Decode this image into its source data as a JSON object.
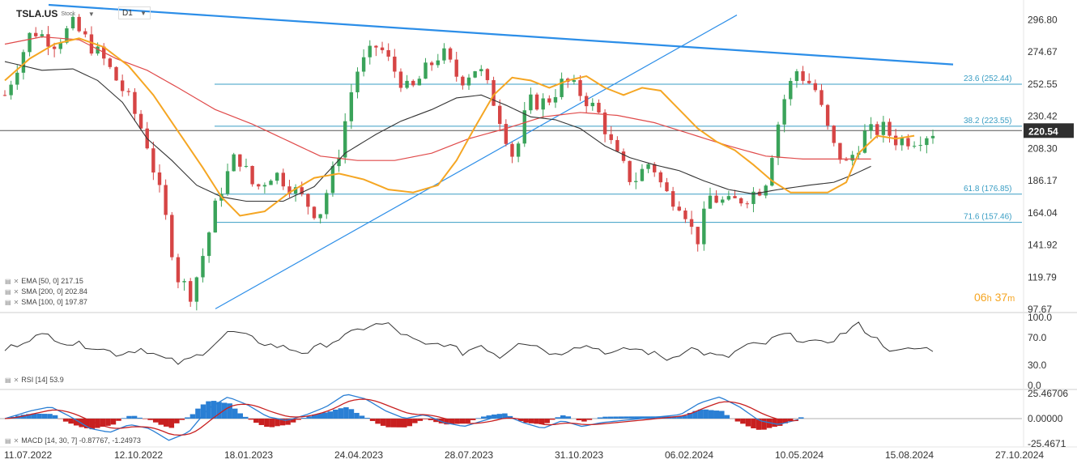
{
  "header": {
    "symbol": "TSLA.US",
    "asset_type": "Stock",
    "timeframe": "D1"
  },
  "indicators": {
    "ema": {
      "label": "EMA [50, 0] 217.15",
      "value": 217.15,
      "color": "#f5a623"
    },
    "sma200": {
      "label": "SMA [200, 0] 202.84",
      "value": 202.84,
      "color": "#e04a4a"
    },
    "sma100": {
      "label": "SMA [100, 0] 197.87",
      "value": 197.87,
      "color": "#333333"
    },
    "rsi": {
      "label": "RSI [14] 53.9",
      "value": 53.9
    },
    "macd": {
      "label": "MACD [14, 30, 7] -0.87767, -1.24973",
      "value": -0.87767,
      "signal": -1.24973
    }
  },
  "countdown": {
    "hours": "06",
    "h_unit": "h",
    "minutes": "37",
    "m_unit": "m"
  },
  "colors": {
    "up": "#3aa35a",
    "down": "#d64545",
    "trend": "#2c8ee8",
    "fib": "#3a9ec4",
    "price_tag": "#2f2f2f"
  },
  "chart_data": {
    "type": "candlestick",
    "title": "TSLA.US Stock D1",
    "x_dates": [
      "11.07.2022",
      "12.10.2022",
      "18.01.2023",
      "24.04.2023",
      "28.07.2023",
      "31.10.2023",
      "06.02.2024",
      "10.05.2024",
      "15.08.2024",
      "27.10.2024"
    ],
    "price_ticks": [
      97.67,
      119.79,
      141.92,
      164.04,
      186.17,
      208.3,
      230.42,
      252.55,
      274.67,
      296.8
    ],
    "ylim": [
      97.67,
      307
    ],
    "last_price": 220.54,
    "fib_levels": [
      {
        "label": "23.6 (252.44)",
        "value": 252.44
      },
      {
        "label": "38.2 (223.55)",
        "value": 223.55
      },
      {
        "label": "61.8 (176.85)",
        "value": 176.85
      },
      {
        "label": "71.6 (157.46)",
        "value": 157.46
      }
    ],
    "price_path": [
      [
        0,
        245
      ],
      [
        6,
        290
      ],
      [
        11,
        281
      ],
      [
        15,
        293
      ],
      [
        22,
        268
      ],
      [
        27,
        243
      ],
      [
        31,
        215
      ],
      [
        35,
        165
      ],
      [
        38,
        120
      ],
      [
        41,
        108
      ],
      [
        44,
        140
      ],
      [
        47,
        177
      ],
      [
        51,
        205
      ],
      [
        55,
        180
      ],
      [
        59,
        192
      ],
      [
        62,
        185
      ],
      [
        66,
        172
      ],
      [
        69,
        162
      ],
      [
        73,
        200
      ],
      [
        77,
        260
      ],
      [
        82,
        280
      ],
      [
        85,
        265
      ],
      [
        89,
        246
      ],
      [
        92,
        260
      ],
      [
        96,
        275
      ],
      [
        100,
        255
      ],
      [
        104,
        265
      ],
      [
        108,
        237
      ],
      [
        112,
        200
      ],
      [
        115,
        240
      ],
      [
        119,
        240
      ],
      [
        123,
        255
      ],
      [
        127,
        245
      ],
      [
        131,
        230
      ],
      [
        134,
        205
      ],
      [
        138,
        185
      ],
      [
        142,
        200
      ],
      [
        145,
        178
      ],
      [
        149,
        170
      ],
      [
        152,
        143
      ],
      [
        155,
        175
      ],
      [
        159,
        170
      ],
      [
        163,
        175
      ],
      [
        167,
        183
      ],
      [
        171,
        240
      ],
      [
        174,
        262
      ],
      [
        178,
        250
      ],
      [
        182,
        210
      ],
      [
        185,
        197
      ],
      [
        189,
        218
      ],
      [
        193,
        222
      ],
      [
        196,
        214
      ],
      [
        200,
        215
      ],
      [
        204,
        220
      ]
    ],
    "sma100_path": [
      [
        0,
        268
      ],
      [
        6,
        262
      ],
      [
        11,
        263
      ],
      [
        15,
        255
      ],
      [
        19,
        240
      ],
      [
        23,
        215
      ],
      [
        27,
        200
      ],
      [
        31,
        183
      ],
      [
        35,
        175
      ],
      [
        39,
        172
      ],
      [
        45,
        172
      ],
      [
        50,
        182
      ],
      [
        55,
        205
      ],
      [
        60,
        218
      ],
      [
        64,
        227
      ],
      [
        69,
        235
      ],
      [
        73,
        243
      ],
      [
        77,
        245
      ],
      [
        81,
        238
      ],
      [
        85,
        230
      ],
      [
        89,
        228
      ],
      [
        93,
        222
      ],
      [
        97,
        210
      ],
      [
        101,
        202
      ],
      [
        105,
        197
      ],
      [
        109,
        193
      ],
      [
        113,
        186
      ],
      [
        117,
        180
      ],
      [
        121,
        177
      ],
      [
        125,
        180
      ],
      [
        130,
        183
      ],
      [
        134,
        185
      ],
      [
        137,
        190
      ],
      [
        140,
        196
      ]
    ],
    "sma200_path": [
      [
        0,
        280
      ],
      [
        6,
        285
      ],
      [
        12,
        283
      ],
      [
        18,
        270
      ],
      [
        23,
        262
      ],
      [
        28,
        250
      ],
      [
        34,
        235
      ],
      [
        40,
        225
      ],
      [
        45,
        215
      ],
      [
        51,
        203
      ],
      [
        57,
        200
      ],
      [
        63,
        200
      ],
      [
        69,
        205
      ],
      [
        75,
        215
      ],
      [
        81,
        222
      ],
      [
        87,
        230
      ],
      [
        93,
        233
      ],
      [
        99,
        231
      ],
      [
        105,
        226
      ],
      [
        111,
        218
      ],
      [
        117,
        210
      ],
      [
        123,
        203
      ],
      [
        129,
        201
      ],
      [
        135,
        201
      ],
      [
        140,
        201
      ]
    ],
    "ema50_path": [
      [
        0,
        255
      ],
      [
        4,
        270
      ],
      [
        8,
        280
      ],
      [
        12,
        284
      ],
      [
        16,
        278
      ],
      [
        20,
        265
      ],
      [
        24,
        245
      ],
      [
        28,
        220
      ],
      [
        32,
        195
      ],
      [
        35,
        175
      ],
      [
        38,
        162
      ],
      [
        42,
        165
      ],
      [
        46,
        178
      ],
      [
        50,
        188
      ],
      [
        54,
        191
      ],
      [
        58,
        187
      ],
      [
        62,
        180
      ],
      [
        66,
        178
      ],
      [
        70,
        183
      ],
      [
        73,
        200
      ],
      [
        76,
        223
      ],
      [
        79,
        245
      ],
      [
        82,
        257
      ],
      [
        85,
        255
      ],
      [
        88,
        250
      ],
      [
        91,
        255
      ],
      [
        94,
        258
      ],
      [
        97,
        250
      ],
      [
        100,
        245
      ],
      [
        103,
        250
      ],
      [
        106,
        248
      ],
      [
        109,
        235
      ],
      [
        112,
        222
      ],
      [
        115,
        213
      ],
      [
        118,
        207
      ],
      [
        121,
        197
      ],
      [
        124,
        186
      ],
      [
        127,
        178
      ],
      [
        130,
        178
      ],
      [
        133,
        178
      ],
      [
        136,
        185
      ],
      [
        138,
        205
      ],
      [
        141,
        217
      ],
      [
        144,
        215
      ],
      [
        147,
        217
      ]
    ],
    "rsi_ylim": [
      0,
      100
    ],
    "rsi_ticks": [
      0.0,
      30.0,
      70.0,
      100.0
    ],
    "rsi_path": [
      [
        0,
        52
      ],
      [
        4,
        70
      ],
      [
        7,
        74
      ],
      [
        10,
        62
      ],
      [
        14,
        58
      ],
      [
        18,
        46
      ],
      [
        22,
        55
      ],
      [
        25,
        40
      ],
      [
        28,
        32
      ],
      [
        31,
        45
      ],
      [
        34,
        66
      ],
      [
        36,
        80
      ],
      [
        39,
        70
      ],
      [
        42,
        60
      ],
      [
        45,
        55
      ],
      [
        48,
        48
      ],
      [
        51,
        60
      ],
      [
        55,
        75
      ],
      [
        58,
        88
      ],
      [
        61,
        90
      ],
      [
        64,
        72
      ],
      [
        67,
        58
      ],
      [
        70,
        62
      ],
      [
        73,
        48
      ],
      [
        76,
        60
      ],
      [
        79,
        42
      ],
      [
        82,
        66
      ],
      [
        85,
        58
      ],
      [
        88,
        44
      ],
      [
        91,
        60
      ],
      [
        94,
        56
      ],
      [
        97,
        46
      ],
      [
        100,
        55
      ],
      [
        103,
        48
      ],
      [
        106,
        38
      ],
      [
        109,
        56
      ],
      [
        112,
        46
      ],
      [
        115,
        40
      ],
      [
        118,
        58
      ],
      [
        121,
        60
      ],
      [
        124,
        75
      ],
      [
        127,
        68
      ],
      [
        130,
        60
      ],
      [
        133,
        72
      ],
      [
        136,
        90
      ],
      [
        139,
        68
      ],
      [
        142,
        48
      ],
      [
        145,
        54
      ],
      [
        148,
        53.9
      ]
    ],
    "macd_ylim": [
      -25.4671,
      25.46706
    ],
    "macd_ticks": [
      -25.4671,
      0.0,
      25.46706
    ],
    "macd_path": [
      [
        0,
        0
      ],
      [
        4,
        8
      ],
      [
        7,
        12
      ],
      [
        10,
        2
      ],
      [
        13,
        -10
      ],
      [
        16,
        -14
      ],
      [
        19,
        -6
      ],
      [
        22,
        -10
      ],
      [
        25,
        -22
      ],
      [
        28,
        -14
      ],
      [
        31,
        10
      ],
      [
        34,
        22
      ],
      [
        37,
        14
      ],
      [
        40,
        2
      ],
      [
        43,
        -2
      ],
      [
        46,
        4
      ],
      [
        49,
        12
      ],
      [
        52,
        25
      ],
      [
        55,
        20
      ],
      [
        58,
        8
      ],
      [
        61,
        0
      ],
      [
        64,
        4
      ],
      [
        67,
        -4
      ],
      [
        70,
        -8
      ],
      [
        73,
        -2
      ],
      [
        76,
        4
      ],
      [
        79,
        -4
      ],
      [
        82,
        -10
      ],
      [
        85,
        -2
      ],
      [
        88,
        -8
      ],
      [
        91,
        -4
      ],
      [
        94,
        -2
      ],
      [
        97,
        0
      ],
      [
        100,
        2
      ],
      [
        103,
        4
      ],
      [
        106,
        16
      ],
      [
        109,
        22
      ],
      [
        112,
        12
      ],
      [
        115,
        -2
      ],
      [
        118,
        -6
      ],
      [
        121,
        -0.87767
      ]
    ]
  }
}
